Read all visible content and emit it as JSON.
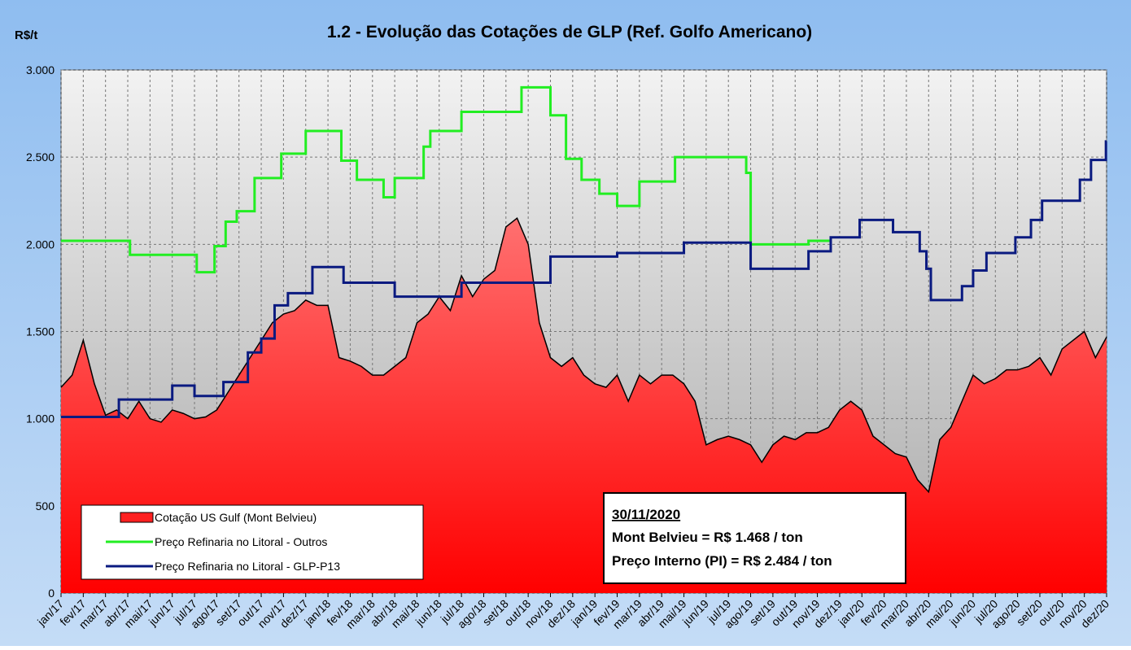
{
  "chart_data": {
    "type": "line",
    "title": "1.2 - Evolução das Cotações de GLP (Ref. Golfo Americano)",
    "y_label": "R$/t",
    "ylim": [
      0,
      3000
    ],
    "yticks": [
      0,
      500,
      {
        "value": 1000,
        "label": "1.000"
      },
      {
        "value": 1500,
        "label": "1.500"
      },
      {
        "value": 2000,
        "label": "2.000"
      },
      {
        "value": 2500,
        "label": "2.500"
      },
      {
        "value": 3000,
        "label": "3.000"
      }
    ],
    "xlim": [
      0,
      47
    ],
    "xticks": [
      {
        "value": 0,
        "label": "jan/17"
      },
      {
        "value": 1,
        "label": "fev/17"
      },
      {
        "value": 2,
        "label": "mar/17"
      },
      {
        "value": 3,
        "label": "abr/17"
      },
      {
        "value": 4,
        "label": "mai/17"
      },
      {
        "value": 5,
        "label": "jun/17"
      },
      {
        "value": 6,
        "label": "jul/17"
      },
      {
        "value": 7,
        "label": "ago/17"
      },
      {
        "value": 8,
        "label": "set/17"
      },
      {
        "value": 9,
        "label": "out/17"
      },
      {
        "value": 10,
        "label": "nov/17"
      },
      {
        "value": 11,
        "label": "dez/17"
      },
      {
        "value": 12,
        "label": "jan/18"
      },
      {
        "value": 13,
        "label": "fev/18"
      },
      {
        "value": 14,
        "label": "mar/18"
      },
      {
        "value": 15,
        "label": "abr/18"
      },
      {
        "value": 16,
        "label": "mai/18"
      },
      {
        "value": 17,
        "label": "jun/18"
      },
      {
        "value": 18,
        "label": "jul/18"
      },
      {
        "value": 19,
        "label": "ago/18"
      },
      {
        "value": 20,
        "label": "set/18"
      },
      {
        "value": 21,
        "label": "out/18"
      },
      {
        "value": 22,
        "label": "nov/18"
      },
      {
        "value": 23,
        "label": "dez/18"
      },
      {
        "value": 24,
        "label": "jan/19"
      },
      {
        "value": 25,
        "label": "fev/19"
      },
      {
        "value": 26,
        "label": "mar/19"
      },
      {
        "value": 27,
        "label": "abr/19"
      },
      {
        "value": 28,
        "label": "mai/19"
      },
      {
        "value": 29,
        "label": "jun/19"
      },
      {
        "value": 30,
        "label": "jul/19"
      },
      {
        "value": 31,
        "label": "ago/19"
      },
      {
        "value": 32,
        "label": "set/19"
      },
      {
        "value": 33,
        "label": "out/19"
      },
      {
        "value": 34,
        "label": "nov/19"
      },
      {
        "value": 35,
        "label": "dez/19"
      },
      {
        "value": 36,
        "label": "jan/20"
      },
      {
        "value": 37,
        "label": "fev/20"
      },
      {
        "value": 38,
        "label": "mar/20"
      },
      {
        "value": 39,
        "label": "abr/20"
      },
      {
        "value": 40,
        "label": "mai/20"
      },
      {
        "value": 41,
        "label": "jun/20"
      },
      {
        "value": 42,
        "label": "jul/20"
      },
      {
        "value": 43,
        "label": "ago/20"
      },
      {
        "value": 44,
        "label": "set/20"
      },
      {
        "value": 45,
        "label": "out/20"
      },
      {
        "value": 46,
        "label": "nov/20"
      },
      {
        "value": 47,
        "label": "dez/20"
      }
    ],
    "grid": true,
    "series": [
      {
        "name": "Cotação US Gulf (Mont Belvieu)",
        "style": "area",
        "color": "#ff2020",
        "x": [
          0,
          0.5,
          1,
          1.5,
          2,
          2.5,
          3,
          3.5,
          4,
          4.5,
          5,
          5.5,
          6,
          6.5,
          7,
          7.5,
          8,
          8.5,
          9,
          9.5,
          10,
          10.5,
          11,
          11.5,
          12,
          12.5,
          13,
          13.5,
          14,
          14.5,
          15,
          15.5,
          16,
          16.5,
          17,
          17.5,
          18,
          18.5,
          19,
          19.5,
          20,
          20.5,
          21,
          21.5,
          22,
          22.5,
          23,
          23.5,
          24,
          24.5,
          25,
          25.5,
          26,
          26.5,
          27,
          27.5,
          28,
          28.5,
          29,
          29.5,
          30,
          30.5,
          31,
          31.5,
          32,
          32.5,
          33,
          33.5,
          34,
          34.5,
          35,
          35.5,
          36,
          36.5,
          37,
          37.5,
          38,
          38.5,
          39,
          39.5,
          40,
          40.5,
          41,
          41.5,
          42,
          42.5,
          43,
          43.5,
          44,
          44.5,
          45,
          45.5,
          46,
          46.5,
          47
        ],
        "values": [
          1180,
          1250,
          1450,
          1200,
          1020,
          1050,
          1000,
          1100,
          1000,
          980,
          1050,
          1030,
          1000,
          1010,
          1050,
          1150,
          1250,
          1350,
          1450,
          1550,
          1600,
          1620,
          1680,
          1650,
          1650,
          1350,
          1330,
          1300,
          1250,
          1250,
          1300,
          1350,
          1550,
          1600,
          1700,
          1620,
          1820,
          1700,
          1800,
          1850,
          2100,
          2150,
          2000,
          1550,
          1350,
          1300,
          1350,
          1250,
          1200,
          1180,
          1250,
          1100,
          1250,
          1200,
          1250,
          1250,
          1200,
          1100,
          850,
          880,
          900,
          880,
          850,
          750,
          850,
          900,
          880,
          920,
          920,
          950,
          1050,
          1100,
          1050,
          900,
          850,
          800,
          780,
          650,
          580,
          880,
          950,
          1100,
          1250,
          1200,
          1230,
          1280,
          1280,
          1300,
          1350,
          1250,
          1400,
          1450,
          1500,
          1350,
          1468
        ]
      },
      {
        "name": "Preço Refinaria no Litoral - Outros",
        "style": "step",
        "color": "#22ee22",
        "x": [
          0,
          3.1,
          6.1,
          6.9,
          7.4,
          7.9,
          8.7,
          9.9,
          11.0,
          12.6,
          13.3,
          14.5,
          15.0,
          16.3,
          16.6,
          18.0,
          20.7,
          22.0,
          22.7,
          23.4,
          24.2,
          25.0,
          26.0,
          27.6,
          30.8,
          31.0,
          33.6,
          34.6
        ],
        "values": [
          2020,
          1940,
          1840,
          1990,
          2130,
          2190,
          2380,
          2520,
          2650,
          2480,
          2370,
          2270,
          2380,
          2560,
          2650,
          2760,
          2900,
          2740,
          2490,
          2370,
          2290,
          2220,
          2360,
          2500,
          2410,
          2000,
          2020,
          2020
        ]
      },
      {
        "name": "Preço Refinaria no Litoral - GLP-P13",
        "style": "step",
        "color": "#0a1a80",
        "x": [
          0,
          2.6,
          5.0,
          6.0,
          7.3,
          8.4,
          9.0,
          9.6,
          10.2,
          11.3,
          12.7,
          15.0,
          18.0,
          22.0,
          25.0,
          28.0,
          31.0,
          33.6,
          34.6,
          35.9,
          37.4,
          38.6,
          38.9,
          39.1,
          40.5,
          41.0,
          41.6,
          42.9,
          43.6,
          44.1,
          45.8,
          46.3,
          46.97,
          47
        ],
        "values": [
          1010,
          1110,
          1190,
          1130,
          1210,
          1380,
          1460,
          1650,
          1720,
          1870,
          1780,
          1700,
          1780,
          1930,
          1950,
          2010,
          1860,
          1960,
          2040,
          2140,
          2070,
          1960,
          1860,
          1680,
          1760,
          1850,
          1950,
          2040,
          2140,
          2250,
          2370,
          2484,
          2590,
          2590
        ]
      }
    ]
  },
  "annotation": {
    "date": "30/11/2020",
    "line1": "Mont Belvieu = R$ 1.468 / ton",
    "line2": "Preço Interno (PI) = R$ 2.484 / ton"
  }
}
